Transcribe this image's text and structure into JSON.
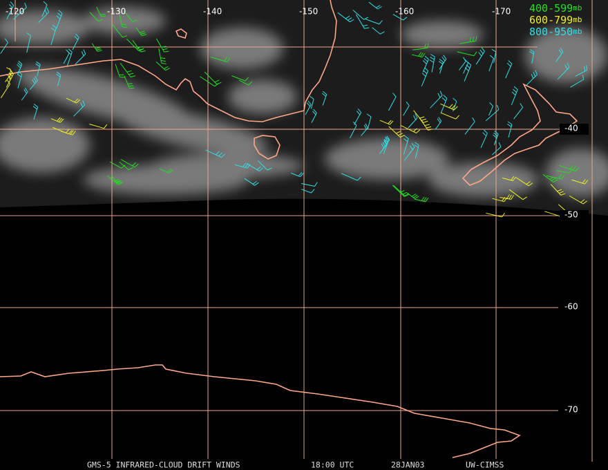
{
  "map": {
    "longitude_labels": [
      "-120",
      "-130",
      "-140",
      "-150",
      "-160",
      "-170"
    ],
    "latitude_labels": [
      "-40",
      "-50",
      "-60",
      "-70"
    ],
    "legend": [
      {
        "range": "400-599",
        "unit": "mb",
        "color": "#22e022"
      },
      {
        "range": "600-799",
        "unit": "mb",
        "color": "#f0f020"
      },
      {
        "range": "800-950",
        "unit": "mb",
        "color": "#30e0e8"
      }
    ],
    "footer": [
      "GMS-5 INFRARED-CLOUD DRIFT WINDS",
      "18:00 UTC",
      "28JAN03",
      "UW-CIMSS"
    ]
  }
}
